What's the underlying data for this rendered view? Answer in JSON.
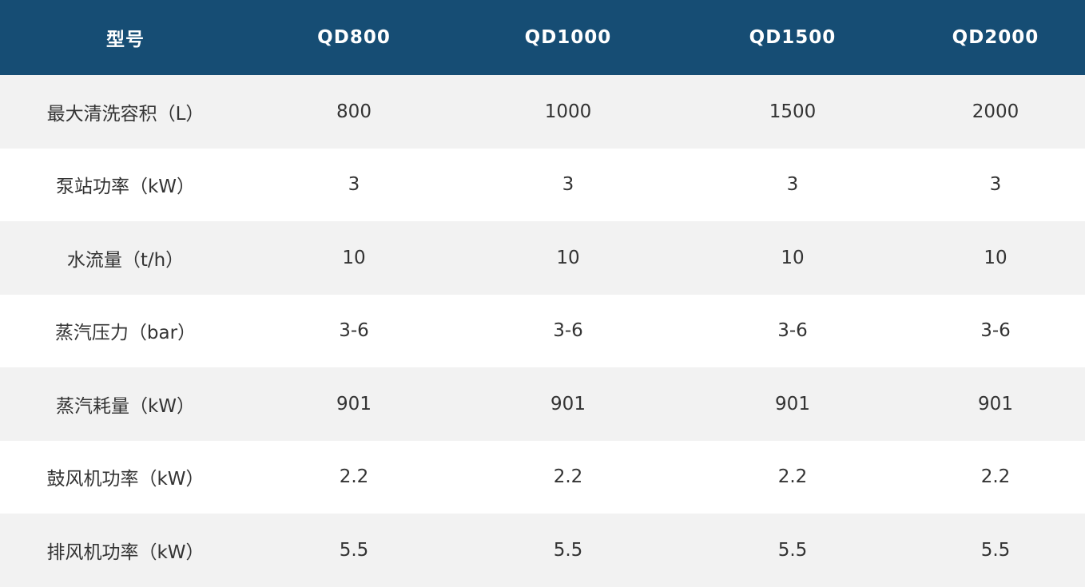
{
  "table": {
    "header": [
      "型号",
      "QD800",
      "QD1000",
      "QD1500",
      "QD2000"
    ],
    "rows": [
      [
        "最大清洗容积（L）",
        "800",
        "1000",
        "1500",
        "2000"
      ],
      [
        "泵站功率（kW）",
        "3",
        "3",
        "3",
        "3"
      ],
      [
        "水流量（t/h）",
        "10",
        "10",
        "10",
        "10"
      ],
      [
        "蒸汽压力（bar）",
        "3-6",
        "3-6",
        "3-6",
        "3-6"
      ],
      [
        "蒸汽耗量（kW）",
        "901",
        "901",
        "901",
        "901"
      ],
      [
        "鼓风机功率（kW）",
        "2.2",
        "2.2",
        "2.2",
        "2.2"
      ],
      [
        "排风机功率（kW）",
        "5.5",
        "5.5",
        "5.5",
        "5.5"
      ]
    ]
  }
}
